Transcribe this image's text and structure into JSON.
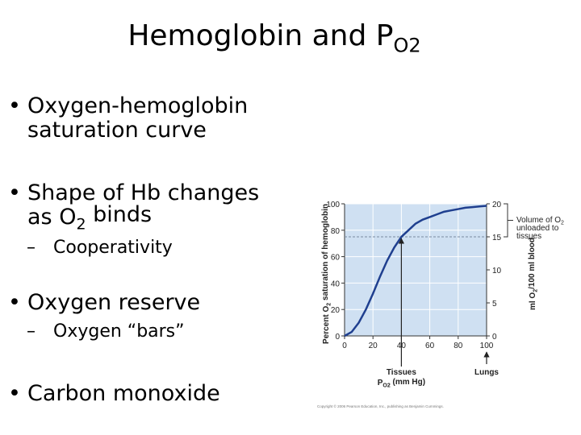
{
  "title": [
    "Hemoglobin and P",
    "O2"
  ],
  "bullets": [
    {
      "level": 1,
      "marker": "•",
      "lines": [
        [
          "Oxygen-hemoglobin"
        ],
        [
          "saturation curve"
        ]
      ]
    },
    {
      "level": 1,
      "marker": "•",
      "lines": [
        [
          "Shape of Hb changes"
        ],
        [
          "as O",
          "2",
          " binds"
        ]
      ]
    },
    {
      "level": 2,
      "marker": "–",
      "lines": [
        [
          "Cooperativity"
        ]
      ]
    },
    {
      "level": 1,
      "marker": "•",
      "lines": [
        [
          "Oxygen reserve"
        ]
      ]
    },
    {
      "level": 2,
      "marker": "–",
      "lines": [
        [
          "Oxygen “bars”"
        ]
      ]
    },
    {
      "level": 1,
      "marker": "•",
      "lines": [
        [
          "Carbon monoxide"
        ]
      ]
    }
  ],
  "chart_data": {
    "type": "line",
    "x": [
      0,
      5,
      10,
      15,
      20,
      25,
      30,
      35,
      40,
      45,
      50,
      55,
      60,
      65,
      70,
      75,
      80,
      85,
      90,
      95,
      100
    ],
    "values": [
      0,
      3,
      10,
      20,
      32,
      45,
      57,
      67,
      75,
      80,
      85,
      88,
      90,
      92,
      94,
      95,
      96,
      97,
      97.5,
      98,
      98.5
    ],
    "color": "#1f3f8f",
    "xlim": [
      0,
      100
    ],
    "xticks": [
      0,
      20,
      40,
      60,
      80,
      100
    ],
    "ylim": [
      0,
      100
    ],
    "yticks": [
      0,
      20,
      40,
      60,
      80,
      100
    ],
    "y2lim": [
      0,
      20
    ],
    "y2ticks": [
      0,
      5,
      10,
      15,
      20
    ],
    "grid": true,
    "xlabel": [
      "P",
      "O2",
      " (mm Hg)"
    ],
    "ylabel": [
      "Percent O",
      "2",
      " saturation of hemoglobin"
    ],
    "y2label": [
      "ml O",
      "2",
      "/100 ml blood"
    ],
    "annotations": [
      {
        "text": "Tissues",
        "x": 40
      },
      {
        "text": "Lungs",
        "x": 100
      }
    ],
    "bracket": {
      "y2": [
        15,
        20
      ],
      "lines": [
        [
          "Volume of O",
          "2"
        ],
        [
          "unloaded to"
        ],
        [
          "tissues"
        ]
      ]
    },
    "credit": "Copyright © 2006 Pearson Education, Inc., publishing as Benjamin Cummings."
  }
}
